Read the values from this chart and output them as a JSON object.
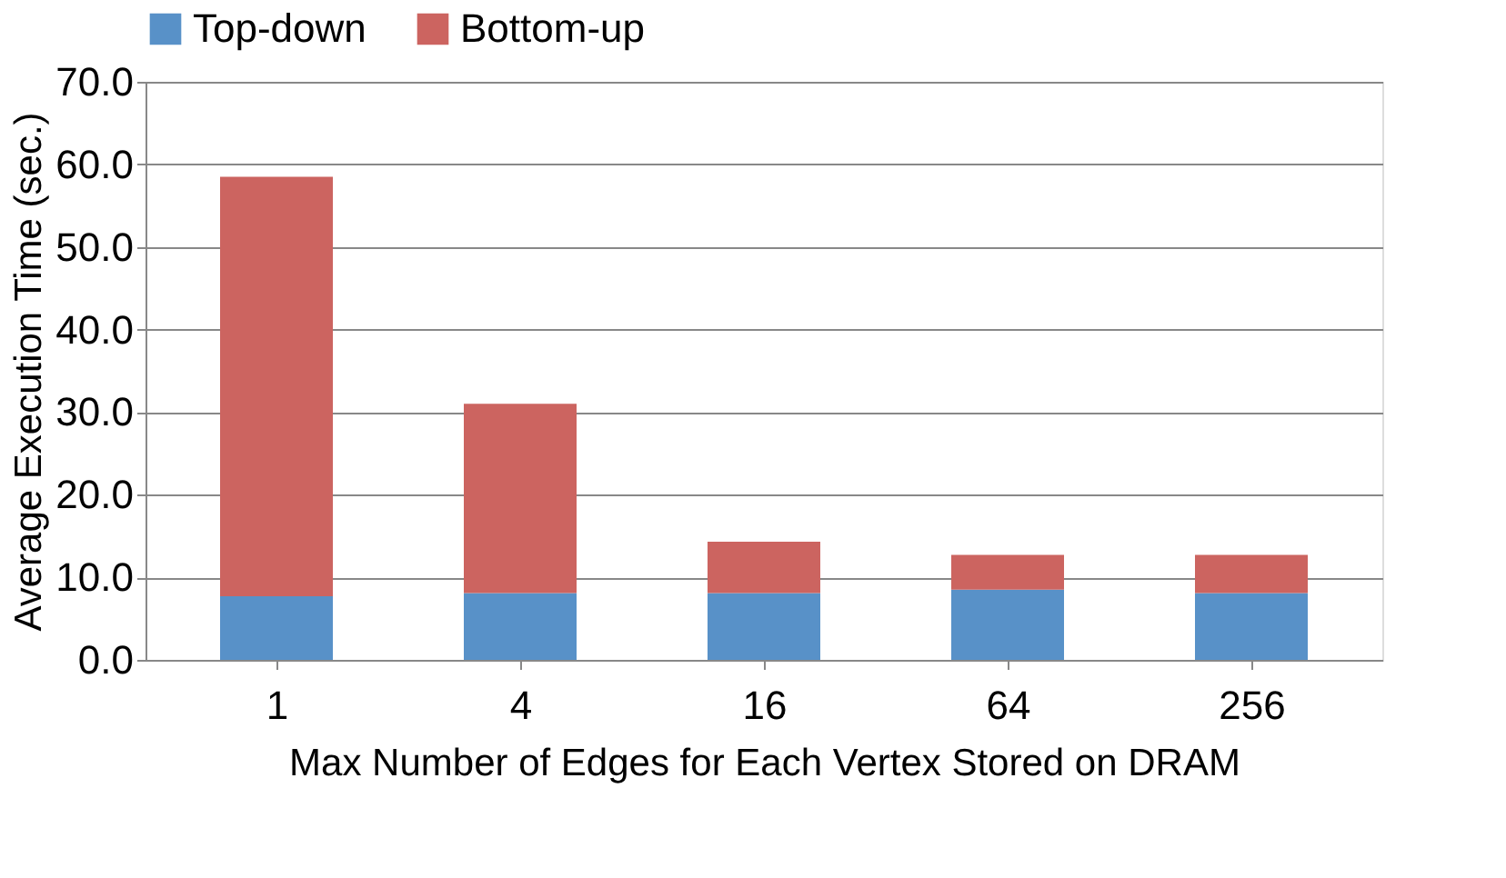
{
  "chart_data": {
    "type": "bar",
    "stacked": true,
    "xlabel": "Max Number of Edges for Each Vertex Stored on DRAM",
    "ylabel": "Average Execution Time (sec.)",
    "categories": [
      "1",
      "4",
      "16",
      "64",
      "256"
    ],
    "series": [
      {
        "name": "Top-down",
        "color": "#5891c8",
        "values": [
          7.7,
          8.1,
          8.1,
          8.5,
          8.1
        ]
      },
      {
        "name": "Bottom-up",
        "color": "#cc6460",
        "values": [
          50.8,
          22.9,
          6.2,
          4.2,
          4.6
        ]
      }
    ],
    "ylim": [
      0,
      70
    ],
    "yticks": [
      {
        "value": 0,
        "label": "0.0"
      },
      {
        "value": 10,
        "label": "10.0"
      },
      {
        "value": 20,
        "label": "20.0"
      },
      {
        "value": 30,
        "label": "30.0"
      },
      {
        "value": 40,
        "label": "40.0"
      },
      {
        "value": 50,
        "label": "50.0"
      },
      {
        "value": 60,
        "label": "60.0"
      },
      {
        "value": 70,
        "label": "70.0"
      }
    ],
    "grid": "y",
    "legend": "top"
  }
}
